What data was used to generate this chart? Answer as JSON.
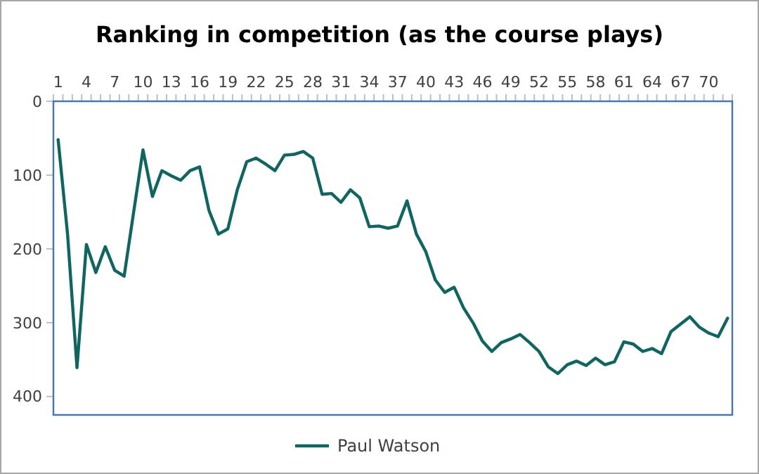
{
  "chart_data": {
    "type": "line",
    "title": "Ranking in competition (as the course plays)",
    "categories": [
      "1",
      null,
      null,
      "4",
      null,
      null,
      "7",
      null,
      null,
      "10",
      null,
      null,
      "13",
      null,
      null,
      "16",
      null,
      null,
      "19",
      null,
      null,
      "22",
      null,
      null,
      "25",
      null,
      null,
      "28",
      null,
      null,
      "31",
      null,
      null,
      "34",
      null,
      null,
      "37",
      null,
      null,
      "40",
      null,
      null,
      "43",
      null,
      null,
      "46",
      null,
      null,
      "49",
      null,
      null,
      "52",
      null,
      null,
      "55",
      null,
      null,
      "58",
      null,
      null,
      "61",
      null,
      null,
      "64",
      null,
      null,
      "67",
      null,
      null,
      "70",
      null,
      null
    ],
    "series": [
      {
        "name": "Paul Watson",
        "color": "#0e6660",
        "values": [
          52,
          180,
          361,
          194,
          232,
          197,
          229,
          237,
          151,
          66,
          129,
          94,
          101,
          107,
          94,
          89,
          148,
          180,
          173,
          120,
          82,
          77,
          85,
          94,
          73,
          72,
          68,
          77,
          126,
          125,
          137,
          120,
          131,
          170,
          169,
          172,
          169,
          135,
          180,
          204,
          242,
          259,
          252,
          280,
          300,
          325,
          339,
          327,
          322,
          316,
          327,
          339,
          360,
          369,
          357,
          352,
          358,
          348,
          357,
          353,
          326,
          329,
          339,
          335,
          342,
          312,
          302,
          292,
          306,
          314,
          319,
          294
        ]
      }
    ],
    "ylim": [
      425,
      0
    ],
    "yticks": [
      0,
      100,
      200,
      300,
      400
    ],
    "grid": false,
    "legend": "bottom",
    "marker": "none",
    "line_style": "solid"
  }
}
